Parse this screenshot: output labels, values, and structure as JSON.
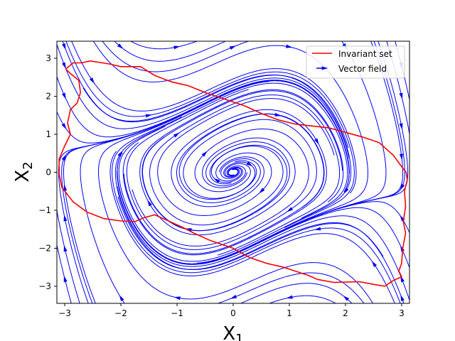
{
  "chart_data": {
    "type": "line",
    "title": "",
    "xlabel": "X_1",
    "ylabel": "X_2",
    "xlim": [
      -3.14,
      3.14
    ],
    "ylim": [
      -3.45,
      3.45
    ],
    "xticks": [
      -3,
      -2,
      -1,
      0,
      1,
      2,
      3
    ],
    "yticks": [
      -3,
      -2,
      -1,
      0,
      1,
      2,
      3
    ],
    "grid": false,
    "legend": {
      "position": "top-right",
      "entries": [
        {
          "label": "Invariant set",
          "color": "#ff0000",
          "kind": "line"
        },
        {
          "label": "Vector field",
          "color": "#0000ff",
          "kind": "arrow"
        }
      ]
    },
    "series": [
      {
        "name": "Invariant set",
        "color": "#ff0000",
        "points": [
          [
            -2.98,
            2.72
          ],
          [
            -2.85,
            2.88
          ],
          [
            -2.7,
            2.88
          ],
          [
            -2.55,
            2.93
          ],
          [
            -2.2,
            2.85
          ],
          [
            -2.0,
            2.78
          ],
          [
            -1.65,
            2.78
          ],
          [
            -1.4,
            2.55
          ],
          [
            -1.1,
            2.38
          ],
          [
            -0.8,
            2.28
          ],
          [
            -0.5,
            2.1
          ],
          [
            -0.2,
            1.95
          ],
          [
            0.2,
            1.75
          ],
          [
            0.5,
            1.55
          ],
          [
            0.8,
            1.38
          ],
          [
            1.1,
            1.27
          ],
          [
            1.4,
            1.22
          ],
          [
            1.7,
            1.17
          ],
          [
            2.0,
            1.05
          ],
          [
            2.3,
            0.93
          ],
          [
            2.6,
            0.78
          ],
          [
            2.85,
            0.45
          ],
          [
            3.0,
            0.15
          ],
          [
            3.08,
            0.0
          ],
          [
            3.1,
            -0.2
          ],
          [
            3.05,
            -0.5
          ],
          [
            3.07,
            -0.9
          ],
          [
            3.03,
            -1.3
          ],
          [
            3.07,
            -1.6
          ],
          [
            3.02,
            -2.0
          ],
          [
            3.0,
            -2.4
          ],
          [
            2.95,
            -2.6
          ],
          [
            3.0,
            -2.75
          ],
          [
            2.85,
            -2.85
          ],
          [
            2.7,
            -3.0
          ],
          [
            2.5,
            -2.95
          ],
          [
            2.25,
            -2.88
          ],
          [
            1.8,
            -2.9
          ],
          [
            1.5,
            -2.82
          ],
          [
            1.35,
            -2.72
          ],
          [
            1.1,
            -2.6
          ],
          [
            0.9,
            -2.5
          ],
          [
            0.6,
            -2.4
          ],
          [
            0.3,
            -2.25
          ],
          [
            0.0,
            -2.0
          ],
          [
            -0.4,
            -1.8
          ],
          [
            -0.7,
            -1.6
          ],
          [
            -0.9,
            -1.45
          ],
          [
            -1.2,
            -1.25
          ],
          [
            -1.4,
            -1.12
          ],
          [
            -1.6,
            -1.2
          ],
          [
            -1.75,
            -1.3
          ],
          [
            -2.0,
            -1.28
          ],
          [
            -2.3,
            -1.22
          ],
          [
            -2.6,
            -1.05
          ],
          [
            -2.85,
            -0.78
          ],
          [
            -3.05,
            -0.4
          ],
          [
            -3.1,
            -0.05
          ],
          [
            -3.1,
            0.35
          ],
          [
            -3.0,
            0.7
          ],
          [
            -2.9,
            1.0
          ],
          [
            -2.95,
            1.3
          ],
          [
            -2.9,
            1.65
          ],
          [
            -2.78,
            1.82
          ],
          [
            -2.72,
            2.1
          ],
          [
            -2.75,
            2.42
          ],
          [
            -2.9,
            2.6
          ],
          [
            -2.98,
            2.72
          ]
        ]
      },
      {
        "name": "Vector field",
        "color": "#0000ff",
        "flow": {
          "x_dot": "x2",
          "y_dot": "-x1 + 0.6*(1 - x1^2)*x2",
          "seeds": [
            [
              -3.0,
              3.3
            ],
            [
              -3.0,
              2.8
            ],
            [
              -3.0,
              2.0
            ],
            [
              -3.0,
              1.2
            ],
            [
              -3.0,
              0.4
            ],
            [
              -3.0,
              -0.4
            ],
            [
              -3.0,
              -1.2
            ],
            [
              -3.0,
              -2.0
            ],
            [
              -3.0,
              -2.8
            ],
            [
              3.0,
              -3.3
            ],
            [
              3.0,
              -2.8
            ],
            [
              3.0,
              -2.0
            ],
            [
              3.0,
              -1.2
            ],
            [
              3.0,
              -0.4
            ],
            [
              3.0,
              0.4
            ],
            [
              3.0,
              1.2
            ],
            [
              3.0,
              2.0
            ],
            [
              3.0,
              2.8
            ],
            [
              -2.0,
              3.3
            ],
            [
              -1.0,
              3.3
            ],
            [
              0.0,
              3.3
            ],
            [
              1.0,
              3.3
            ],
            [
              2.0,
              3.3
            ],
            [
              -2.0,
              -3.3
            ],
            [
              -1.0,
              -3.3
            ],
            [
              0.0,
              -3.3
            ],
            [
              1.0,
              -3.3
            ],
            [
              2.0,
              -3.3
            ],
            [
              -1.5,
              1.5
            ],
            [
              -1.0,
              1.0
            ],
            [
              -0.5,
              0.5
            ],
            [
              0.5,
              -0.5
            ],
            [
              1.0,
              -1.0
            ],
            [
              1.5,
              -1.5
            ],
            [
              -2.0,
              0.5
            ],
            [
              2.0,
              -0.5
            ],
            [
              0.3,
              0.2
            ],
            [
              -0.3,
              -0.2
            ],
            [
              0.8,
              1.5
            ],
            [
              -0.8,
              -1.5
            ],
            [
              -2.5,
              2.4
            ],
            [
              2.5,
              -2.4
            ],
            [
              1.5,
              0.8
            ],
            [
              -1.5,
              -0.8
            ]
          ]
        }
      }
    ]
  }
}
